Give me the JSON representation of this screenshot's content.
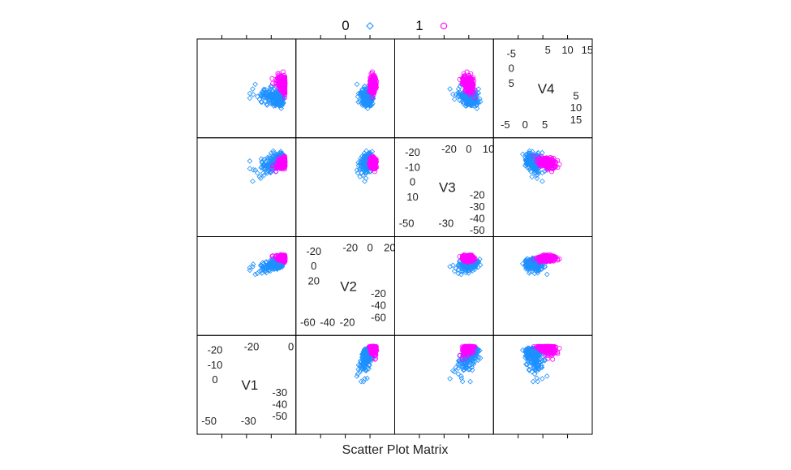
{
  "chart_data": {
    "type": "scatter",
    "title": "Scatter Plot Matrix",
    "layout": "4x4 pairwise scatter plot matrix",
    "variables": [
      {
        "name": "V1",
        "range": [
          -57,
          3
        ],
        "ticks_low": [
          -50,
          -30
        ],
        "ticks_high": [
          -20,
          0
        ],
        "mid_low": [
          -20,
          -10,
          0
        ],
        "mid_high": [
          -30,
          -40,
          -50
        ]
      },
      {
        "name": "V2",
        "range": [
          -72,
          23
        ],
        "ticks_low": [
          -60,
          -40,
          -20
        ],
        "ticks_high": [
          -20,
          0,
          20
        ],
        "mid_low": [
          -20,
          0,
          20
        ],
        "mid_high": [
          -20,
          -40,
          -60
        ]
      },
      {
        "name": "V3",
        "range": [
          -50,
          10
        ],
        "ticks_low": [
          -50,
          -30
        ],
        "ticks_high": [
          -20,
          0,
          10
        ],
        "mid_low": [
          -20,
          -10,
          0,
          10
        ],
        "mid_high": [
          -20,
          -30,
          -40,
          -50
        ]
      },
      {
        "name": "V4",
        "range": [
          -6,
          17
        ],
        "ticks_low": [
          -5,
          0,
          5
        ],
        "ticks_high": [
          5,
          10,
          15
        ],
        "mid_low": [
          -5,
          0,
          5
        ],
        "mid_high": [
          5,
          10,
          15
        ]
      }
    ],
    "legend": {
      "position": "top",
      "entries": [
        {
          "label": "0",
          "color": "#1e90ff",
          "marker": "open-diamond"
        },
        {
          "label": "1",
          "color": "#ff00ff",
          "marker": "open-circle"
        }
      ]
    },
    "series": [
      {
        "class": "0",
        "color": "#1e90ff",
        "description": "large dense point cloud spreading toward extreme negative values"
      },
      {
        "class": "1",
        "color": "#ff00ff",
        "description": "compact cloud overlapping the upper part of class 0"
      }
    ],
    "grid": false
  }
}
